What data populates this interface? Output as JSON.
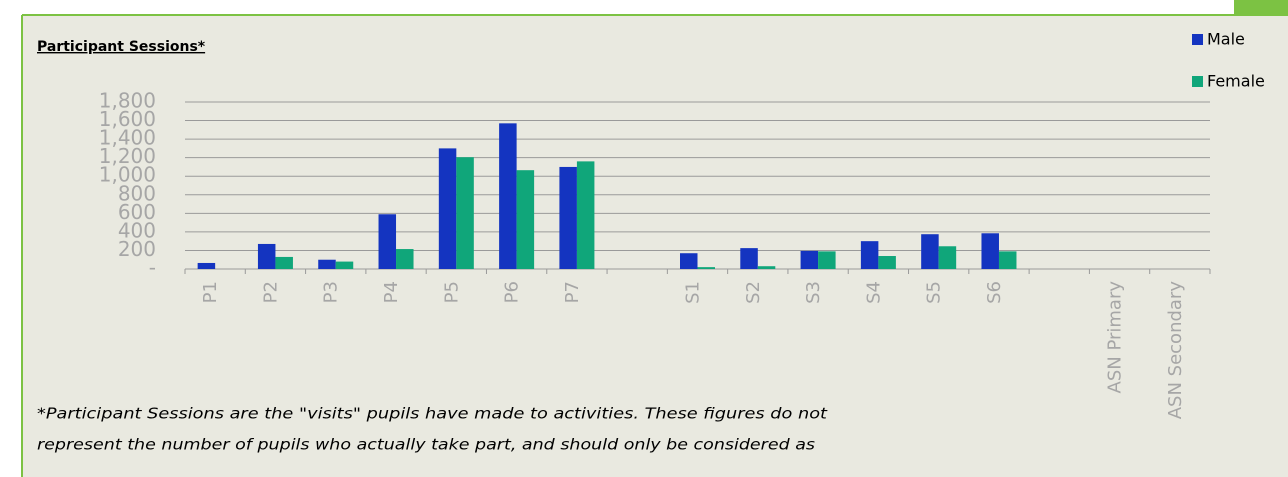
{
  "chart_data": {
    "type": "bar",
    "title": "Participant Sessions*",
    "categories": [
      "P1",
      "P2",
      "P3",
      "P4",
      "P5",
      "P6",
      "P7",
      null,
      "S1",
      "S2",
      "S3",
      "S4",
      "S5",
      "S6",
      null,
      "ASN Primary",
      "ASN Secondary"
    ],
    "series": [
      {
        "name": "Male",
        "color": "#1434c0",
        "values": [
          65,
          270,
          100,
          590,
          1300,
          1570,
          1100,
          null,
          170,
          225,
          195,
          300,
          375,
          385,
          null,
          null,
          null
        ]
      },
      {
        "name": "Female",
        "color": "#10a67a",
        "values": [
          0,
          130,
          80,
          215,
          1205,
          1065,
          1160,
          null,
          20,
          30,
          190,
          140,
          245,
          190,
          null,
          null,
          null
        ]
      }
    ],
    "ylim": [
      0,
      1800
    ],
    "yticks": [
      {
        "value": 0,
        "label": "-"
      },
      200,
      400,
      600,
      800,
      {
        "value": 1000,
        "label": "1,000"
      },
      {
        "value": 1200,
        "label": "1,200"
      },
      {
        "value": 1400,
        "label": "1,400"
      },
      {
        "value": 1600,
        "label": "1,600"
      },
      {
        "value": 1800,
        "label": "1,800"
      }
    ],
    "grid": true,
    "legend": "right",
    "footnote": [
      "*Participant Sessions are the \"visits\" pupils have made to activities. These figures do not",
      "represent the number of pupils who actually take part, and should only be considered as"
    ]
  }
}
